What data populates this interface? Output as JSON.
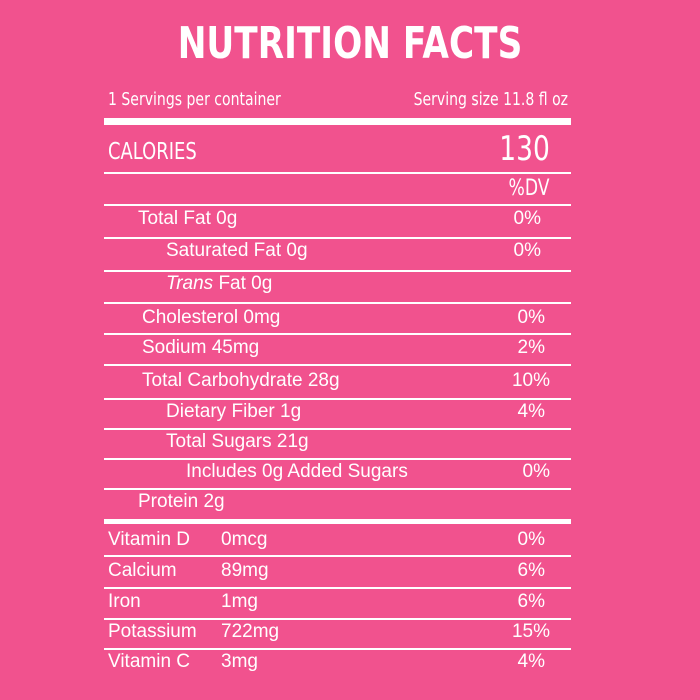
{
  "panel": {
    "title": "NUTRITION FACTS",
    "servings_per_container": "1 Servings per container",
    "serving_size": "Serving size 11.8 fl oz",
    "calories_label": "CALORIES",
    "calories_value": "130",
    "dv_header": "%DV"
  },
  "nutrients": {
    "total_fat": {
      "label": "Total Fat 0g",
      "dv": "0%"
    },
    "saturated_fat": {
      "label": "Saturated Fat 0g",
      "dv": "0%"
    },
    "trans_fat": {
      "label_italic": "Trans",
      "label_rest": " Fat 0g"
    },
    "cholesterol": {
      "label": "Cholesterol 0mg",
      "dv": "0%"
    },
    "sodium": {
      "label": "Sodium 45mg",
      "dv": "2%"
    },
    "total_carbohydrate": {
      "label": "Total Carbohydrate 28g",
      "dv": "10%"
    },
    "dietary_fiber": {
      "label": "Dietary Fiber 1g",
      "dv": "4%"
    },
    "total_sugars": {
      "label": "Total Sugars  21g"
    },
    "added_sugars": {
      "label": "Includes 0g Added Sugars",
      "dv": "0%"
    },
    "protein": {
      "label": "Protein 2g"
    }
  },
  "vitamins": {
    "vitamin_d": {
      "name": "Vitamin D",
      "amount": "0mcg",
      "dv": "0%"
    },
    "calcium": {
      "name": "Calcium",
      "amount": "89mg",
      "dv": "6%"
    },
    "iron": {
      "name": "Iron",
      "amount": "1mg",
      "dv": "6%"
    },
    "potassium": {
      "name": "Potassium",
      "amount": "722mg",
      "dv": "15%"
    },
    "vitamin_c": {
      "name": "Vitamin C",
      "amount": "3mg",
      "dv": "4%"
    }
  },
  "colors": {
    "background": "#f1528e",
    "foreground": "#ffffff"
  }
}
